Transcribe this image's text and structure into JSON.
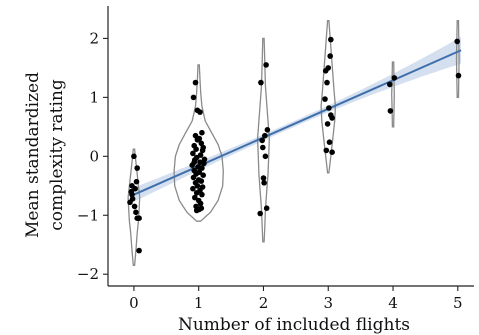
{
  "chart_data": {
    "type": "scatter",
    "xlabel": "Number of included flights",
    "ylabel_lines": [
      "Mean standardized",
      "complexity rating"
    ],
    "x_ticks": [
      0,
      1,
      2,
      3,
      4,
      5
    ],
    "y_ticks": [
      -2,
      -1,
      0,
      1,
      2
    ],
    "y_tick_labels": [
      "−2",
      "−1",
      "0",
      "1",
      "2"
    ],
    "xlim": [
      -0.4,
      5.25
    ],
    "ylim": [
      -2.2,
      2.55
    ],
    "regression": {
      "intercept": -0.65,
      "slope": 0.485,
      "ci_at_x0": 0.12,
      "ci_at_mid": 0.05,
      "ci_at_x5": 0.22,
      "color": "#3f6faa",
      "band_color": "#b8c9e6"
    },
    "violins": [
      {
        "x": 0,
        "min": -1.85,
        "max": 0.12,
        "shape": [
          [
            -1.85,
            0.01
          ],
          [
            -1.6,
            0.03
          ],
          [
            -1.3,
            0.05
          ],
          [
            -1.1,
            0.07
          ],
          [
            -0.9,
            0.08
          ],
          [
            -0.7,
            0.09
          ],
          [
            -0.5,
            0.07
          ],
          [
            -0.3,
            0.05
          ],
          [
            -0.1,
            0.03
          ],
          [
            0.12,
            0.01
          ]
        ]
      },
      {
        "x": 1,
        "min": -1.1,
        "max": 1.55,
        "shape": [
          [
            -1.1,
            0.03
          ],
          [
            -0.95,
            0.18
          ],
          [
            -0.75,
            0.3
          ],
          [
            -0.5,
            0.37
          ],
          [
            -0.25,
            0.38
          ],
          [
            0.0,
            0.36
          ],
          [
            0.2,
            0.3
          ],
          [
            0.4,
            0.2
          ],
          [
            0.6,
            0.1
          ],
          [
            0.85,
            0.05
          ],
          [
            1.1,
            0.03
          ],
          [
            1.3,
            0.02
          ],
          [
            1.55,
            0.01
          ]
        ]
      },
      {
        "x": 2,
        "min": -1.45,
        "max": 2.0,
        "shape": [
          [
            -1.45,
            0.01
          ],
          [
            -1.2,
            0.02
          ],
          [
            -0.9,
            0.03
          ],
          [
            -0.6,
            0.05
          ],
          [
            -0.3,
            0.07
          ],
          [
            0.0,
            0.08
          ],
          [
            0.3,
            0.09
          ],
          [
            0.6,
            0.07
          ],
          [
            0.9,
            0.05
          ],
          [
            1.2,
            0.03
          ],
          [
            1.6,
            0.02
          ],
          [
            2.0,
            0.01
          ]
        ]
      },
      {
        "x": 3,
        "min": -0.28,
        "max": 2.3,
        "shape": [
          [
            -0.28,
            0.01
          ],
          [
            0.0,
            0.04
          ],
          [
            0.3,
            0.07
          ],
          [
            0.6,
            0.1
          ],
          [
            0.85,
            0.11
          ],
          [
            1.1,
            0.09
          ],
          [
            1.4,
            0.07
          ],
          [
            1.7,
            0.05
          ],
          [
            2.0,
            0.03
          ],
          [
            2.3,
            0.01
          ]
        ]
      },
      {
        "x": 4,
        "min": 0.5,
        "max": 1.6,
        "shape": [
          [
            0.5,
            0.01
          ],
          [
            0.8,
            0.015
          ],
          [
            1.05,
            0.02
          ],
          [
            1.3,
            0.015
          ],
          [
            1.6,
            0.01
          ]
        ]
      },
      {
        "x": 5,
        "min": 1.0,
        "max": 2.3,
        "shape": [
          [
            1.0,
            0.01
          ],
          [
            1.35,
            0.015
          ],
          [
            1.65,
            0.02
          ],
          [
            1.95,
            0.015
          ],
          [
            2.3,
            0.01
          ]
        ]
      }
    ],
    "points": [
      {
        "x": -0.06,
        "y": -0.78
      },
      {
        "x": -0.04,
        "y": -0.6
      },
      {
        "x": -0.03,
        "y": -0.5
      },
      {
        "x": 0.02,
        "y": -0.55
      },
      {
        "x": 0.05,
        "y": -0.2
      },
      {
        "x": 0.0,
        "y": 0.0
      },
      {
        "x": 0.04,
        "y": -0.43
      },
      {
        "x": -0.02,
        "y": -0.72
      },
      {
        "x": 0.03,
        "y": -0.95
      },
      {
        "x": 0.05,
        "y": -1.05
      },
      {
        "x": 0.08,
        "y": -1.05
      },
      {
        "x": 0.08,
        "y": -1.6
      },
      {
        "x": 0.01,
        "y": -0.85
      },
      {
        "x": -0.03,
        "y": -0.65
      },
      {
        "x": 0.92,
        "y": 1.0
      },
      {
        "x": 0.95,
        "y": 1.25
      },
      {
        "x": 0.98,
        "y": 0.78
      },
      {
        "x": 1.02,
        "y": 0.75
      },
      {
        "x": 1.05,
        "y": 0.4
      },
      {
        "x": 0.95,
        "y": 0.35
      },
      {
        "x": 0.98,
        "y": 0.28
      },
      {
        "x": 1.01,
        "y": 0.3
      },
      {
        "x": 1.04,
        "y": 0.22
      },
      {
        "x": 0.93,
        "y": 0.18
      },
      {
        "x": 0.96,
        "y": 0.12
      },
      {
        "x": 1.06,
        "y": 0.1
      },
      {
        "x": 0.91,
        "y": 0.05
      },
      {
        "x": 1.03,
        "y": 0.02
      },
      {
        "x": 0.97,
        "y": -0.02
      },
      {
        "x": 0.94,
        "y": -0.06
      },
      {
        "x": 1.02,
        "y": -0.1
      },
      {
        "x": 1.08,
        "y": -0.12
      },
      {
        "x": 0.9,
        "y": -0.15
      },
      {
        "x": 0.99,
        "y": -0.18
      },
      {
        "x": 1.05,
        "y": -0.2
      },
      {
        "x": 0.93,
        "y": -0.24
      },
      {
        "x": 1.01,
        "y": -0.27
      },
      {
        "x": 0.96,
        "y": -0.3
      },
      {
        "x": 1.07,
        "y": -0.32
      },
      {
        "x": 0.92,
        "y": -0.36
      },
      {
        "x": 1.0,
        "y": -0.4
      },
      {
        "x": 1.04,
        "y": -0.42
      },
      {
        "x": 0.95,
        "y": -0.45
      },
      {
        "x": 0.98,
        "y": -0.5
      },
      {
        "x": 1.06,
        "y": -0.52
      },
      {
        "x": 0.91,
        "y": -0.55
      },
      {
        "x": 1.02,
        "y": -0.58
      },
      {
        "x": 0.97,
        "y": -0.62
      },
      {
        "x": 1.05,
        "y": -0.65
      },
      {
        "x": 0.94,
        "y": -0.7
      },
      {
        "x": 1.0,
        "y": -0.75
      },
      {
        "x": 1.03,
        "y": -0.8
      },
      {
        "x": 0.96,
        "y": -0.85
      },
      {
        "x": 1.01,
        "y": -0.9
      },
      {
        "x": 0.97,
        "y": -0.92
      },
      {
        "x": 1.04,
        "y": -0.88
      },
      {
        "x": 0.93,
        "y": -0.1
      },
      {
        "x": 1.09,
        "y": -0.05
      },
      {
        "x": 1.07,
        "y": 0.15
      },
      {
        "x": 1.96,
        "y": 1.25
      },
      {
        "x": 2.04,
        "y": 1.55
      },
      {
        "x": 1.98,
        "y": 0.27
      },
      {
        "x": 2.02,
        "y": 0.35
      },
      {
        "x": 2.06,
        "y": 0.45
      },
      {
        "x": 1.99,
        "y": 0.15
      },
      {
        "x": 2.03,
        "y": 0.0
      },
      {
        "x": 2.0,
        "y": -0.37
      },
      {
        "x": 2.01,
        "y": -0.45
      },
      {
        "x": 1.95,
        "y": -0.97
      },
      {
        "x": 2.05,
        "y": -0.88
      },
      {
        "x": 2.96,
        "y": 1.45
      },
      {
        "x": 3.0,
        "y": 1.5
      },
      {
        "x": 3.04,
        "y": 1.98
      },
      {
        "x": 3.03,
        "y": 1.7
      },
      {
        "x": 2.98,
        "y": 1.25
      },
      {
        "x": 2.95,
        "y": 0.97
      },
      {
        "x": 3.01,
        "y": 0.82
      },
      {
        "x": 3.04,
        "y": 0.7
      },
      {
        "x": 3.06,
        "y": 0.65
      },
      {
        "x": 2.99,
        "y": 0.55
      },
      {
        "x": 3.02,
        "y": 0.24
      },
      {
        "x": 2.97,
        "y": 0.1
      },
      {
        "x": 3.06,
        "y": 0.07
      },
      {
        "x": 3.95,
        "y": 1.22
      },
      {
        "x": 4.02,
        "y": 1.33
      },
      {
        "x": 3.96,
        "y": 0.77
      },
      {
        "x": 4.99,
        "y": 1.95
      },
      {
        "x": 5.01,
        "y": 1.37
      }
    ]
  }
}
